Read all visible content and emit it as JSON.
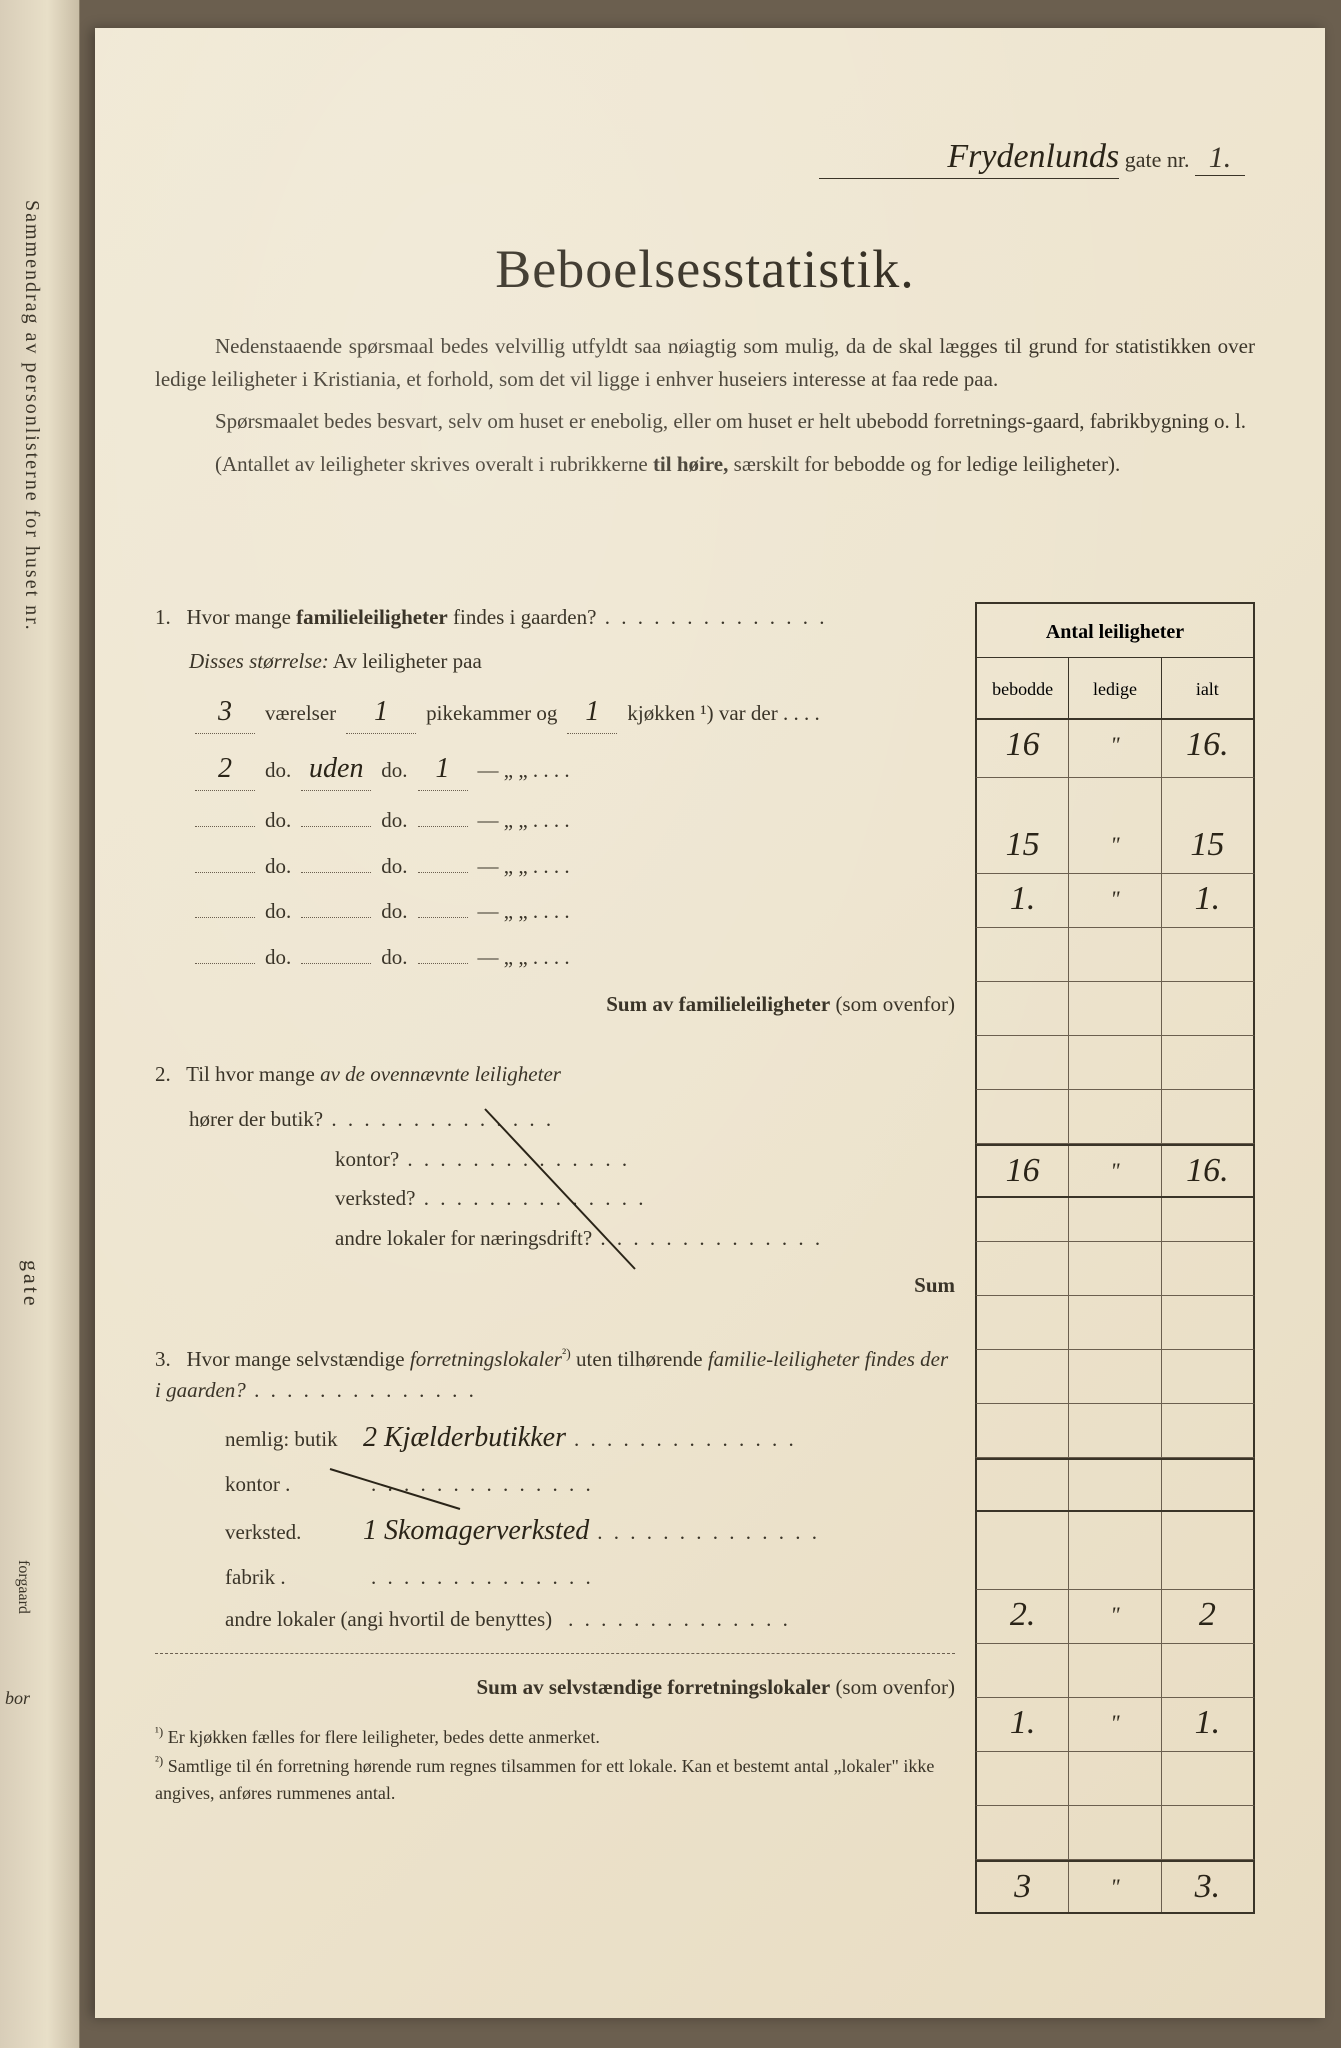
{
  "colors": {
    "paper": "#ede4ce",
    "ink": "#2a2418",
    "text": "#3a3428",
    "rule": "#6b5f4f"
  },
  "fonts": {
    "body_family": "Georgia, Times New Roman, serif",
    "cursive_family": "Brush Script MT, cursive",
    "title_size_pt": 40,
    "body_size_pt": 16,
    "cursive_size_pt": 22
  },
  "spine": {
    "line1": "Sammendrag av personlisterne for huset nr.",
    "gate": "gate",
    "bor": "bor",
    "small": "forgaard"
  },
  "header": {
    "street_name": "Frydenlunds",
    "gate_label": "gate nr.",
    "street_nr": "1."
  },
  "title": "Beboelsesstatistik.",
  "intro": {
    "p1a": "Nedenstaaende spørsmaal bedes velvillig utfyldt saa nøiagtig som mulig, da de skal lægges til grund for statistikken over ledige leiligheter i Kristiania, et forhold, som det vil ligge i enhver huseiers interesse at faa rede paa.",
    "p2a": "Spørsmaalet bedes besvart, selv om huset er enebolig, eller om huset er helt ubebodd forretnings-gaard, fabrikbygning o. l.",
    "p3a": "(Antallet av leiligheter skrives overalt i rubrikkerne ",
    "p3b": "til høire,",
    "p3c": " særskilt for bebodde og for ledige leiligheter)."
  },
  "table_header": {
    "title": "Antal leiligheter",
    "c1": "bebodde",
    "c2": "ledige",
    "c3": "ialt"
  },
  "q1": {
    "num": "1.",
    "text": "Hvor mange ",
    "bold": "familieleiligheter",
    "text2": " findes i gaarden?",
    "disses": "Disses størrelse:",
    "av": " Av leiligheter paa",
    "rows": [
      {
        "v": "3",
        "d1": "værelser",
        "p": "1",
        "d2": "pikekammer og",
        "k": "1",
        "d3": "kjøkken ¹) var der . . . .",
        "bebodde": "15",
        "ledige": "\"",
        "ialt": "15"
      },
      {
        "v": "2",
        "d1": "do.",
        "p": "uden",
        "d2": "do.",
        "k": "1",
        "d3": "—        „    „  . . . .",
        "bebodde": "1.",
        "ledige": "\"",
        "ialt": "1."
      },
      {
        "v": "",
        "d1": "do.",
        "p": "",
        "d2": "do.",
        "k": "",
        "d3": "—        „    „  . . . .",
        "bebodde": "",
        "ledige": "",
        "ialt": ""
      },
      {
        "v": "",
        "d1": "do.",
        "p": "",
        "d2": "do.",
        "k": "",
        "d3": "—        „    „  . . . .",
        "bebodde": "",
        "ledige": "",
        "ialt": ""
      },
      {
        "v": "",
        "d1": "do.",
        "p": "",
        "d2": "do.",
        "k": "",
        "d3": "—        „    „  . . . .",
        "bebodde": "",
        "ledige": "",
        "ialt": ""
      },
      {
        "v": "",
        "d1": "do.",
        "p": "",
        "d2": "do.",
        "k": "",
        "d3": "—        „    „  . . . .",
        "bebodde": "",
        "ledige": "",
        "ialt": ""
      }
    ],
    "total": {
      "bebodde": "16",
      "ledige": "\"",
      "ialt": "16."
    },
    "sum_label_b": "Sum av familieleiligheter",
    "sum_label_l": " (som ovenfor)",
    "sum": {
      "bebodde": "16",
      "ledige": "\"",
      "ialt": "16."
    }
  },
  "q2": {
    "num": "2.",
    "text1": "Til hvor mange ",
    "ital": "av de ovennævnte leiligheter",
    "line2": "hører der butik?",
    "subs": [
      "kontor?",
      "verksted?",
      "andre lokaler for næringsdrift?"
    ],
    "sum": "Sum"
  },
  "q3": {
    "num": "3.",
    "text1": "Hvor mange selvstændige ",
    "ital": "forretningslokaler",
    "sup": "²)",
    "text2": " uten tilhørende ",
    "ital2": "familie-leiligheter findes der i gaarden?",
    "lines": [
      {
        "label": "nemlig: butik",
        "value": "2 Kjælderbutikker",
        "bebodde": "2.",
        "ledige": "\"",
        "ialt": "2"
      },
      {
        "label": "kontor .",
        "value": "",
        "bebodde": "",
        "ledige": "",
        "ialt": ""
      },
      {
        "label": "verksted.",
        "value": "1 Skomagerverksted",
        "bebodde": "1.",
        "ledige": "\"",
        "ialt": "1."
      },
      {
        "label": "fabrik .",
        "value": "",
        "bebodde": "",
        "ledige": "",
        "ialt": ""
      },
      {
        "label": "andre lokaler (angi hvortil de benyttes)",
        "value": "",
        "bebodde": "",
        "ledige": "",
        "ialt": ""
      }
    ],
    "sum_b": "Sum av selvstændige forretningslokaler",
    "sum_l": " (som ovenfor)",
    "sum": {
      "bebodde": "3",
      "ledige": "\"",
      "ialt": "3."
    }
  },
  "footnotes": {
    "f1": "Er kjøkken fælles for flere leiligheter, bedes dette anmerket.",
    "f2": "Samtlige til én forretning hørende rum regnes tilsammen for ett lokale. Kan et bestemt antal „lokaler\" ikke angives, anføres rummenes antal."
  }
}
